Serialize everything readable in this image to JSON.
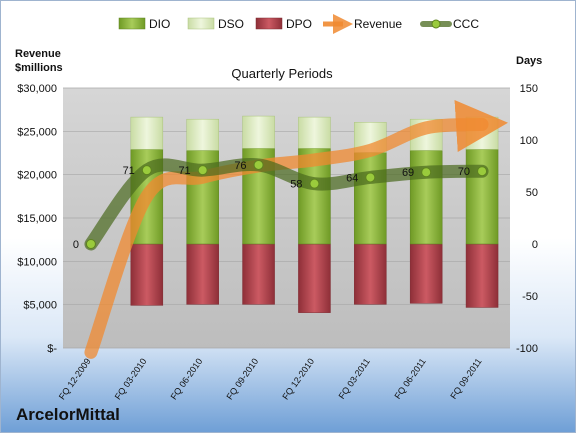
{
  "chart_data": {
    "type": "bar",
    "company": "ArcelorMittal",
    "subtitle": "Quarterly Periods",
    "left_axis_title": [
      "Revenue",
      "$millions"
    ],
    "right_axis_title": "Days",
    "categories": [
      "FQ 12-2009",
      "FQ 03-2010",
      "FQ 06-2010",
      "FQ 09-2010",
      "FQ 12-2010",
      "FQ 03-2011",
      "FQ 06-2011",
      "FQ 09-2011"
    ],
    "left_ticks": [
      "$30,000",
      "$25,000",
      "$20,000",
      "$15,000",
      "$10,000",
      "$5,000",
      "$-"
    ],
    "left_tick_values": [
      30000,
      25000,
      20000,
      15000,
      10000,
      5000,
      0
    ],
    "right_ticks": [
      "150",
      "100",
      "50",
      "0",
      "-50",
      "-100"
    ],
    "right_tick_values": [
      150,
      100,
      50,
      0,
      -50,
      -100
    ],
    "ylim_left": [
      0,
      30000
    ],
    "ylim_right": [
      -100,
      150
    ],
    "legend": [
      "DIO",
      "DSO",
      "DPO",
      "Revenue",
      "CCC"
    ],
    "legend_position": "top",
    "series": [
      {
        "name": "DIO",
        "axis": "right",
        "values": [
          null,
          91,
          90,
          92,
          92,
          88,
          90,
          91
        ]
      },
      {
        "name": "DSO",
        "axis": "right",
        "values": [
          null,
          31,
          30,
          31,
          30,
          29,
          30,
          31
        ]
      },
      {
        "name": "DPO",
        "axis": "right",
        "values": [
          null,
          -59,
          -58,
          -58,
          -66,
          -58,
          -57,
          -61
        ]
      },
      {
        "name": "Revenue",
        "axis": "left",
        "values": [
          -500,
          17500,
          19700,
          21000,
          21700,
          22800,
          25400,
          25800
        ]
      },
      {
        "name": "CCC",
        "axis": "right",
        "values": [
          0,
          71,
          71,
          76,
          58,
          64,
          69,
          70
        ]
      }
    ],
    "ccc_labels": [
      "0",
      "71",
      "71",
      "76",
      "58",
      "64",
      "69",
      "70"
    ],
    "colors": {
      "DIO": "#8fbb3a",
      "DSO": "#dcebc0",
      "DPO": "#b8434d",
      "Revenue": "#f08a30",
      "CCC": "#4a6a1e"
    }
  }
}
